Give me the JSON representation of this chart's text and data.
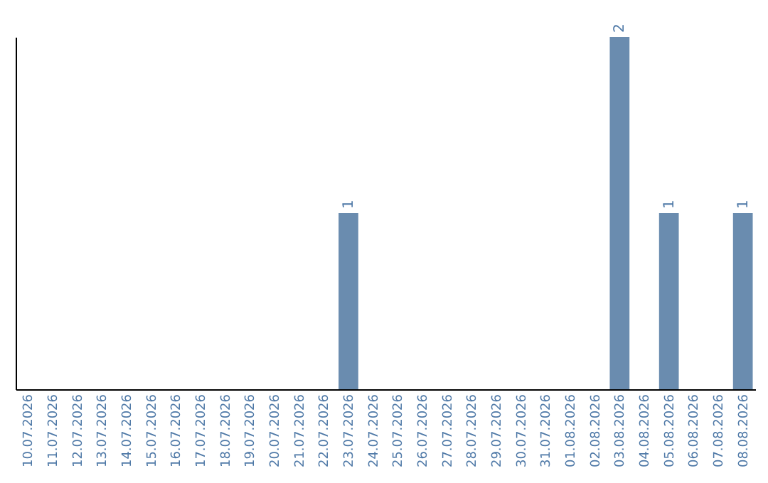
{
  "chart_data": {
    "type": "bar",
    "categories": [
      "10.07.2026",
      "11.07.2026",
      "12.07.2026",
      "13.07.2026",
      "14.07.2026",
      "15.07.2026",
      "16.07.2026",
      "17.07.2026",
      "18.07.2026",
      "19.07.2026",
      "20.07.2026",
      "21.07.2026",
      "22.07.2026",
      "23.07.2026",
      "24.07.2026",
      "25.07.2026",
      "26.07.2026",
      "27.07.2026",
      "28.07.2026",
      "29.07.2026",
      "30.07.2026",
      "31.07.2026",
      "01.08.2026",
      "02.08.2026",
      "03.08.2026",
      "04.08.2026",
      "05.08.2026",
      "06.08.2026",
      "07.08.2026",
      "08.08.2026"
    ],
    "values": [
      null,
      null,
      null,
      null,
      null,
      null,
      null,
      null,
      null,
      null,
      null,
      null,
      null,
      1,
      null,
      null,
      null,
      null,
      null,
      null,
      null,
      null,
      null,
      null,
      2,
      null,
      1,
      null,
      null,
      1
    ],
    "data_labels": true,
    "color": "#6a8caf",
    "tick_labels": "x",
    "grid": false
  }
}
